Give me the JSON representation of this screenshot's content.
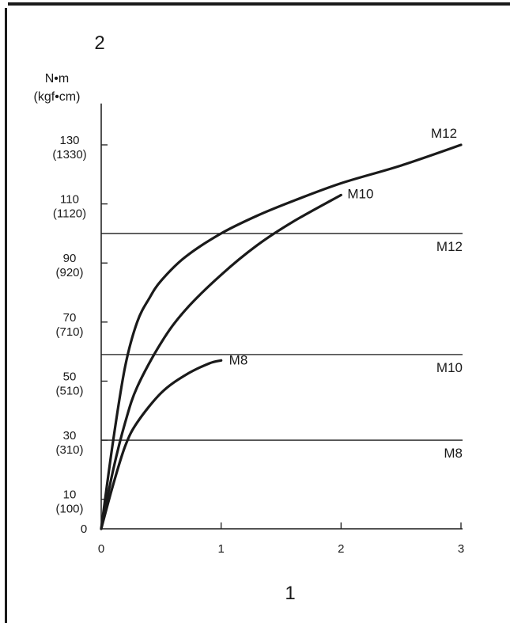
{
  "chart_data": {
    "type": "line",
    "corner_label": "2",
    "x_axis_number": "1",
    "y_unit_primary": "N•m",
    "y_unit_secondary": "(kgf•cm)",
    "xlim": [
      0,
      3
    ],
    "ylim": [
      0,
      144
    ],
    "x_ticks": [
      {
        "value": 0,
        "label": "0"
      },
      {
        "value": 1,
        "label": "1"
      },
      {
        "value": 2,
        "label": "2"
      },
      {
        "value": 3,
        "label": "3"
      }
    ],
    "y_ticks": [
      {
        "value": 0,
        "label": "0",
        "sub": ""
      },
      {
        "value": 10,
        "label": "10",
        "sub": "(100)"
      },
      {
        "value": 30,
        "label": "30",
        "sub": "(310)"
      },
      {
        "value": 50,
        "label": "50",
        "sub": "(510)"
      },
      {
        "value": 70,
        "label": "70",
        "sub": "(710)"
      },
      {
        "value": 90,
        "label": "90",
        "sub": "(920)"
      },
      {
        "value": 110,
        "label": "110",
        "sub": "(1120)"
      },
      {
        "value": 130,
        "label": "130",
        "sub": "(1330)"
      }
    ],
    "series": [
      {
        "name": "M12",
        "x": [
          0,
          0.1,
          0.2,
          0.3,
          0.4,
          0.5,
          0.7,
          1.0,
          1.3,
          1.6,
          2.0,
          2.5,
          3.0
        ],
        "y": [
          0,
          30,
          55,
          70,
          78,
          84,
          92,
          100,
          106,
          111,
          117,
          123,
          130
        ]
      },
      {
        "name": "M10",
        "x": [
          0,
          0.1,
          0.2,
          0.3,
          0.5,
          0.7,
          1.0,
          1.3,
          1.6,
          2.0
        ],
        "y": [
          0,
          20,
          36,
          48,
          63,
          74,
          86,
          96,
          104,
          113
        ]
      },
      {
        "name": "M8",
        "x": [
          0,
          0.1,
          0.2,
          0.3,
          0.5,
          0.7,
          0.9,
          1.0
        ],
        "y": [
          0,
          15,
          28,
          36,
          46,
          52,
          56,
          57
        ]
      }
    ],
    "reference_lines": [
      {
        "name": "M12",
        "y": 100
      },
      {
        "name": "M10",
        "y": 59
      },
      {
        "name": "M8",
        "y": 30
      }
    ]
  }
}
